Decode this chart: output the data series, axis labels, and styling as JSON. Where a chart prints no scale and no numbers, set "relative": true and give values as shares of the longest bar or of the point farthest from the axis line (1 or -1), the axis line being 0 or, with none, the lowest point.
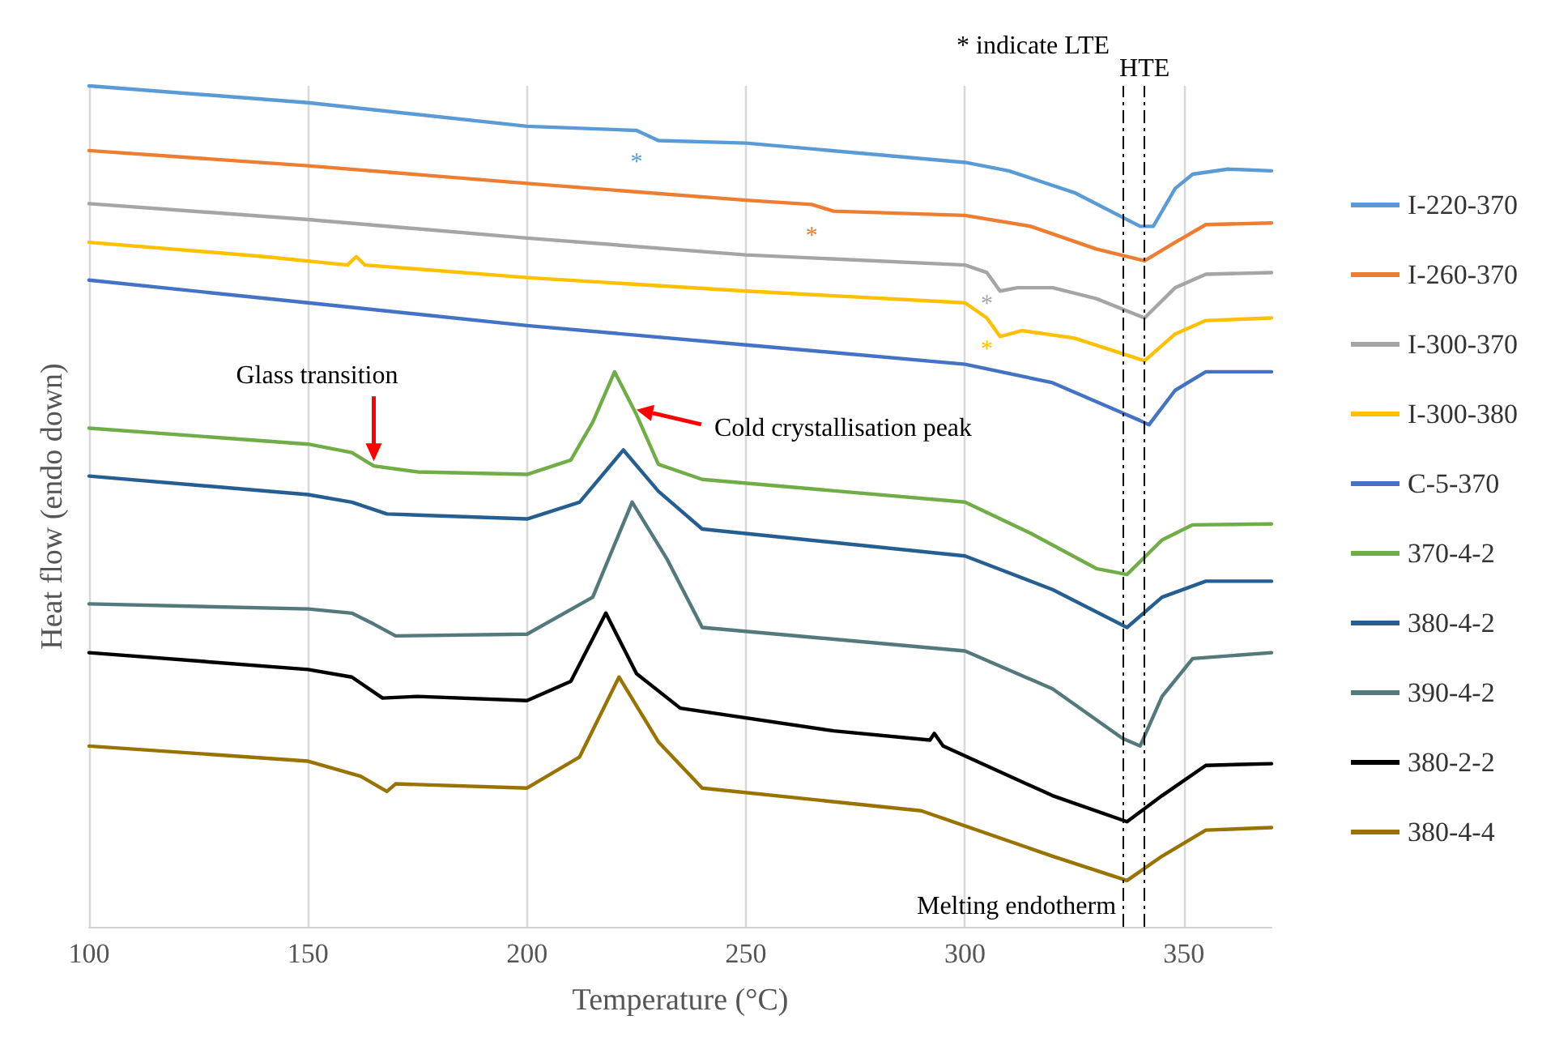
{
  "chart_data": {
    "type": "line",
    "relative": true,
    "xlabel": "Temperature (°C)",
    "ylabel": "Heat flow (endo down)",
    "xlim": [
      100,
      370
    ],
    "xticks": [
      100,
      150,
      200,
      250,
      300,
      350
    ],
    "grid": "x",
    "legend": "right",
    "marker": "none",
    "line_style": "solid",
    "series": [
      {
        "name": "I-220-370",
        "color": "#5b9bd5",
        "x": [
          100,
          150,
          200,
          225,
          230,
          250,
          300,
          310,
          325,
          340,
          343,
          348,
          352,
          360,
          370
        ],
        "values": [
          1.0,
          0.98,
          0.952,
          0.947,
          0.935,
          0.932,
          0.909,
          0.899,
          0.873,
          0.833,
          0.833,
          0.878,
          0.895,
          0.901,
          0.899
        ]
      },
      {
        "name": "I-260-370",
        "color": "#ed7d31",
        "x": [
          100,
          150,
          200,
          250,
          265,
          270,
          300,
          315,
          330,
          341,
          348,
          355,
          370
        ],
        "values": [
          0.923,
          0.905,
          0.884,
          0.864,
          0.859,
          0.851,
          0.846,
          0.833,
          0.806,
          0.792,
          0.814,
          0.835,
          0.837
        ]
      },
      {
        "name": "I-300-370",
        "color": "#a5a5a5",
        "x": [
          100,
          150,
          200,
          250,
          300,
          305,
          308,
          312,
          320,
          330,
          341,
          348,
          355,
          370
        ],
        "values": [
          0.86,
          0.841,
          0.819,
          0.799,
          0.787,
          0.778,
          0.756,
          0.76,
          0.76,
          0.747,
          0.724,
          0.76,
          0.776,
          0.778
        ]
      },
      {
        "name": "I-300-380",
        "color": "#ffc000",
        "x": [
          100,
          140,
          159,
          161,
          163,
          200,
          250,
          300,
          305,
          308,
          313,
          325,
          341,
          348,
          355,
          370
        ],
        "values": [
          0.814,
          0.797,
          0.787,
          0.797,
          0.787,
          0.772,
          0.756,
          0.742,
          0.724,
          0.702,
          0.709,
          0.7,
          0.673,
          0.705,
          0.721,
          0.724
        ]
      },
      {
        "name": "C-5-370",
        "color": "#4472c4",
        "x": [
          100,
          150,
          200,
          250,
          300,
          320,
          340,
          342,
          348,
          355,
          370
        ],
        "values": [
          0.769,
          0.742,
          0.715,
          0.692,
          0.669,
          0.647,
          0.602,
          0.597,
          0.638,
          0.66,
          0.66
        ]
      },
      {
        "name": "370-4-2",
        "color": "#70ad47",
        "x": [
          100,
          150,
          160,
          165,
          175,
          200,
          210,
          215,
          220,
          225,
          230,
          240,
          300,
          315,
          330,
          337,
          345,
          352,
          370
        ],
        "values": [
          0.593,
          0.574,
          0.564,
          0.548,
          0.541,
          0.538,
          0.555,
          0.6,
          0.66,
          0.609,
          0.55,
          0.532,
          0.505,
          0.468,
          0.426,
          0.419,
          0.46,
          0.478,
          0.479
        ]
      },
      {
        "name": "380-4-2",
        "color": "#255e91",
        "x": [
          100,
          150,
          160,
          168,
          200,
          212,
          222,
          230,
          240,
          300,
          320,
          337,
          345,
          355,
          370
        ],
        "values": [
          0.536,
          0.514,
          0.505,
          0.491,
          0.485,
          0.505,
          0.567,
          0.518,
          0.473,
          0.441,
          0.401,
          0.356,
          0.392,
          0.411,
          0.411
        ]
      },
      {
        "name": "390-4-2",
        "color": "#53797b",
        "x": [
          100,
          150,
          160,
          165,
          170,
          200,
          215,
          224,
          232,
          240,
          300,
          320,
          336,
          340,
          345,
          352,
          370
        ],
        "values": [
          0.384,
          0.378,
          0.373,
          0.36,
          0.346,
          0.348,
          0.392,
          0.505,
          0.437,
          0.356,
          0.328,
          0.283,
          0.224,
          0.215,
          0.274,
          0.319,
          0.326
        ]
      },
      {
        "name": "380-2-2",
        "color": "#000000",
        "x": [
          100,
          150,
          160,
          167,
          175,
          200,
          210,
          218,
          225,
          235,
          270,
          292,
          293,
          295,
          320,
          337,
          345,
          355,
          370
        ],
        "values": [
          0.326,
          0.306,
          0.297,
          0.272,
          0.274,
          0.269,
          0.292,
          0.373,
          0.301,
          0.26,
          0.233,
          0.222,
          0.23,
          0.215,
          0.156,
          0.125,
          0.156,
          0.192,
          0.194
        ]
      },
      {
        "name": "380-4-4",
        "color": "#997300",
        "x": [
          100,
          150,
          162,
          168,
          170,
          200,
          212,
          221,
          230,
          240,
          290,
          320,
          337,
          345,
          355,
          370
        ],
        "values": [
          0.215,
          0.197,
          0.179,
          0.161,
          0.17,
          0.165,
          0.202,
          0.297,
          0.22,
          0.165,
          0.138,
          0.084,
          0.055,
          0.084,
          0.115,
          0.118
        ]
      }
    ],
    "ref_lines": [
      {
        "axis": "x",
        "value": 341,
        "label": "HTE",
        "line_style": "dashdot"
      },
      {
        "axis": "x",
        "value": 336,
        "label": "Melting endotherm",
        "line_style": "dashdot"
      }
    ],
    "annotations": [
      "* indicate LTE",
      {
        "text": "Glass transition",
        "x": 165,
        "y": 0.548
      },
      {
        "text": "Cold crystallisation peak",
        "x": 225,
        "y": 0.609
      },
      {
        "text": "*",
        "x": 225,
        "y": 0.947
      },
      {
        "text": "*",
        "x": 265,
        "y": 0.859
      },
      {
        "text": "*",
        "x": 305,
        "y": 0.778
      },
      {
        "text": "*",
        "x": 305,
        "y": 0.724
      }
    ]
  }
}
